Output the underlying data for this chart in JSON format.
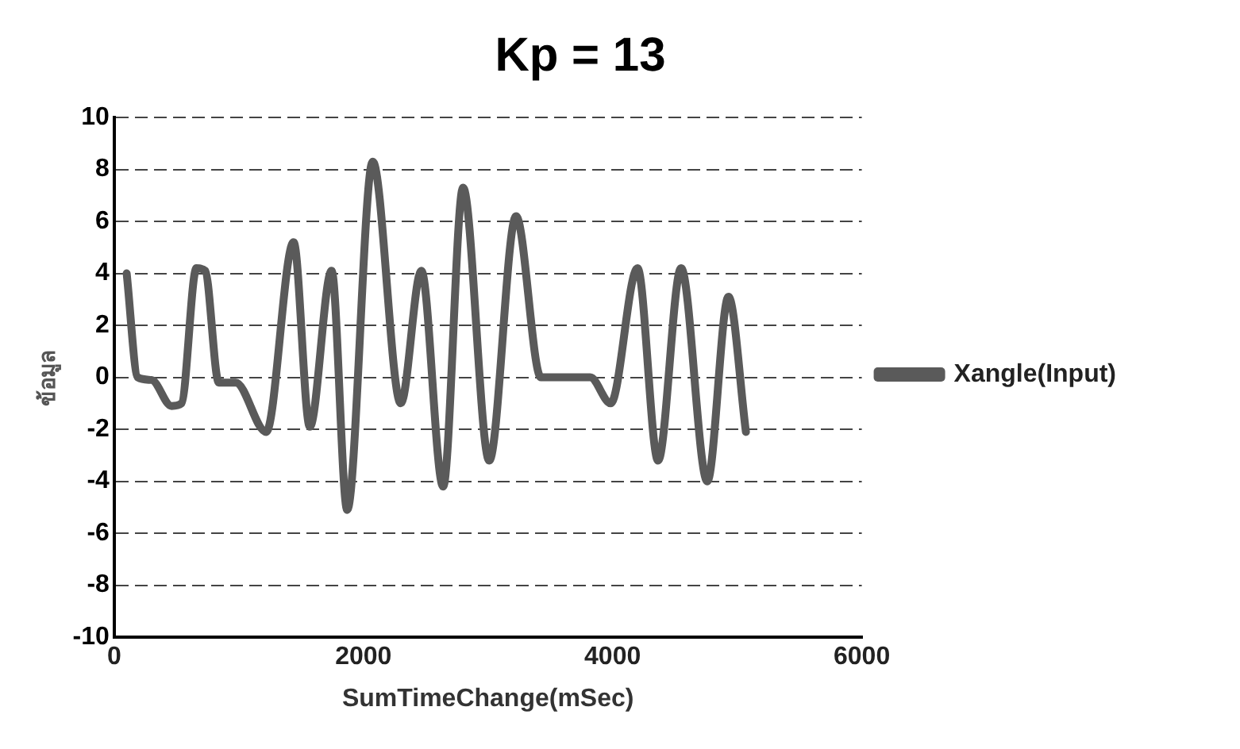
{
  "chart_data": {
    "type": "line",
    "title": "Kp = 13",
    "xlabel": "SumTimeChange(mSec)",
    "ylabel": "ข้อมูล",
    "xlim": [
      0,
      6000
    ],
    "xticks": [
      0,
      2000,
      4000,
      6000
    ],
    "ylim": [
      -10,
      10
    ],
    "yticks": [
      -10,
      -8,
      -6,
      -4,
      -2,
      0,
      2,
      4,
      6,
      8,
      10
    ],
    "grid": "y",
    "legend": "right",
    "marker": "none",
    "line_style": "solid",
    "series": [
      {
        "name": "Xangle(Input)",
        "color": "#5a5a5a",
        "x": [
          100,
          190,
          300,
          460,
          540,
          660,
          730,
          840,
          975,
          1220,
          1440,
          1570,
          1745,
          1870,
          2075,
          2300,
          2465,
          2640,
          2800,
          3010,
          3225,
          3425,
          3820,
          3985,
          4200,
          4365,
          4550,
          4760,
          4930,
          5070
        ],
        "values": [
          4,
          0,
          -0.1,
          -1.1,
          -1,
          4.2,
          4.1,
          -0.2,
          -0.2,
          -2.1,
          5.2,
          -1.9,
          4.1,
          -5.1,
          8.3,
          -1,
          4.1,
          -4.2,
          7.3,
          -3.2,
          6.2,
          0,
          0,
          -1,
          4.2,
          -3.2,
          4.2,
          -4,
          3.1,
          -2.1
        ]
      }
    ]
  }
}
